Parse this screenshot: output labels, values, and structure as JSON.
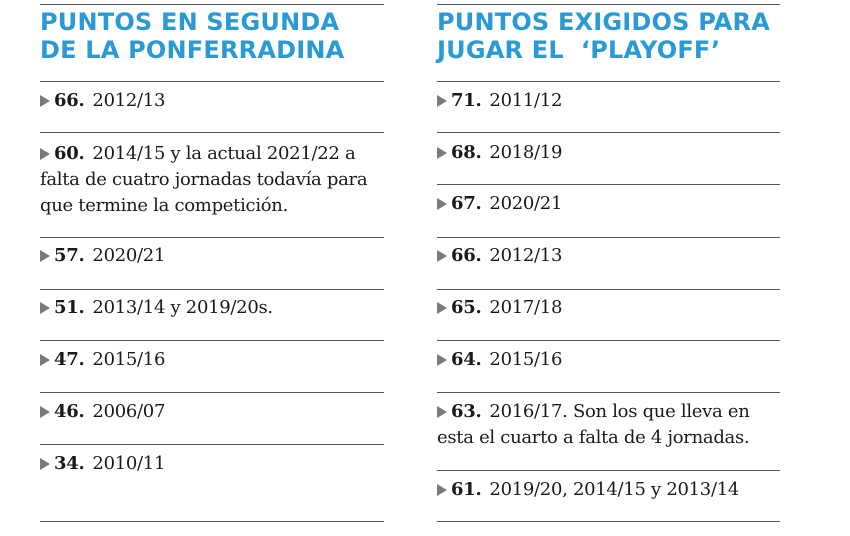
{
  "left": {
    "heading_line1": "PUNTOS EN SEGUNDA",
    "heading_line2": "DE LA PONFERRADINA",
    "entries": [
      {
        "points": "66.",
        "text": "2012/13"
      },
      {
        "points": "60.",
        "text": "2014/15 y la actual 2021/22 a falta de cuatro jornadas todavía para que termine la competición."
      },
      {
        "points": "57.",
        "text": "2020/21"
      },
      {
        "points": "51.",
        "text": "2013/14 y 2019/20s."
      },
      {
        "points": "47.",
        "text": "2015/16"
      },
      {
        "points": "46.",
        "text": "2006/07"
      },
      {
        "points": "34.",
        "text": "2010/11"
      }
    ]
  },
  "right": {
    "heading_line1": "PUNTOS EXIGIDOS PARA",
    "heading_line2": "JUGAR EL  ‘PLAYOFF’",
    "entries": [
      {
        "points": "71.",
        "text": "2011/12"
      },
      {
        "points": "68.",
        "text": "2018/19"
      },
      {
        "points": "67.",
        "text": "2020/21"
      },
      {
        "points": "66.",
        "text": "2012/13"
      },
      {
        "points": "65.",
        "text": "2017/18"
      },
      {
        "points": "64.",
        "text": "2015/16"
      },
      {
        "points": "63.",
        "text": "2016/17. Son los que lleva en esta el cuarto a falta de 4 jornadas."
      },
      {
        "points": "61.",
        "text": "2019/20, 2014/15 y 2013/14"
      }
    ]
  }
}
